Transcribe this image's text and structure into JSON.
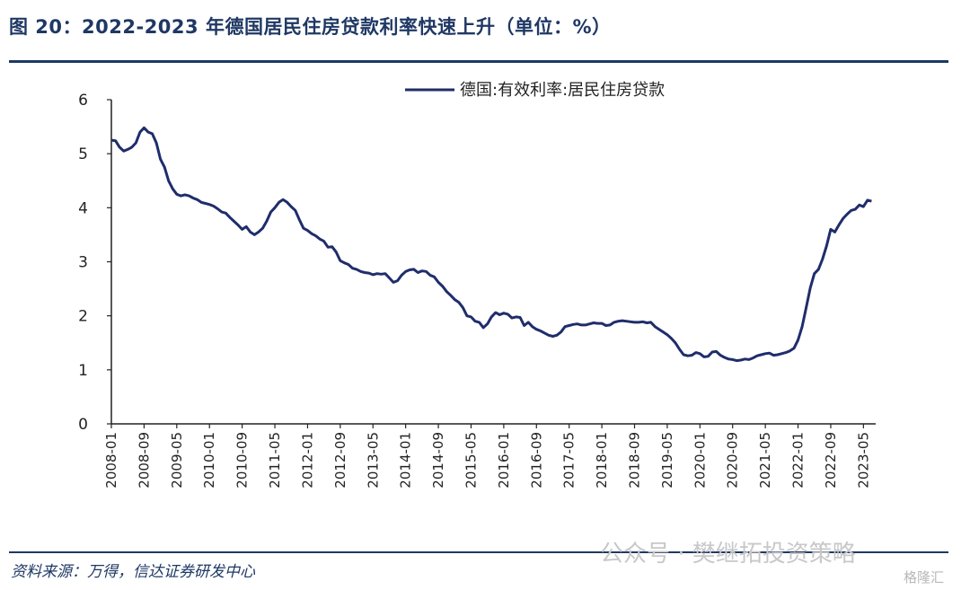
{
  "header": {
    "title": "图 20：2022-2023 年德国居民住房贷款利率快速上升（单位：%）"
  },
  "footer": {
    "source": "资料来源：万得，信达证券研发中心",
    "watermark": "公众号 · 樊继拓投资策略",
    "watermark2": "格隆汇"
  },
  "chart_data": {
    "type": "line",
    "title": "",
    "xlabel": "",
    "ylabel": "",
    "ylim": [
      0,
      6
    ],
    "yticks": [
      "0",
      "1",
      "2",
      "3",
      "4",
      "5",
      "6"
    ],
    "xticks": [
      "2008-01",
      "2008-09",
      "2009-05",
      "2010-01",
      "2010-09",
      "2011-05",
      "2012-01",
      "2012-09",
      "2013-05",
      "2014-01",
      "2014-09",
      "2015-05",
      "2016-01",
      "2016-09",
      "2017-05",
      "2018-01",
      "2018-09",
      "2019-05",
      "2020-01",
      "2020-09",
      "2021-05",
      "2022-01",
      "2022-09",
      "2023-05"
    ],
    "grid": false,
    "legend_position": "top-right",
    "series": [
      {
        "name": "德国:有效利率:居民住房贷款",
        "color": "#1f2d6b",
        "points": [
          [
            "2008-01",
            5.25
          ],
          [
            "2008-02",
            5.24
          ],
          [
            "2008-03",
            5.12
          ],
          [
            "2008-04",
            5.05
          ],
          [
            "2008-05",
            5.08
          ],
          [
            "2008-06",
            5.12
          ],
          [
            "2008-07",
            5.2
          ],
          [
            "2008-08",
            5.4
          ],
          [
            "2008-09",
            5.48
          ],
          [
            "2008-10",
            5.4
          ],
          [
            "2008-11",
            5.37
          ],
          [
            "2008-12",
            5.2
          ],
          [
            "2009-01",
            4.9
          ],
          [
            "2009-02",
            4.75
          ],
          [
            "2009-03",
            4.5
          ],
          [
            "2009-04",
            4.35
          ],
          [
            "2009-05",
            4.25
          ],
          [
            "2009-06",
            4.22
          ],
          [
            "2009-07",
            4.24
          ],
          [
            "2009-08",
            4.22
          ],
          [
            "2009-09",
            4.18
          ],
          [
            "2009-10",
            4.15
          ],
          [
            "2009-11",
            4.1
          ],
          [
            "2009-12",
            4.08
          ],
          [
            "2010-01",
            4.06
          ],
          [
            "2010-02",
            4.03
          ],
          [
            "2010-03",
            3.98
          ],
          [
            "2010-04",
            3.92
          ],
          [
            "2010-05",
            3.9
          ],
          [
            "2010-06",
            3.82
          ],
          [
            "2010-07",
            3.75
          ],
          [
            "2010-08",
            3.68
          ],
          [
            "2010-09",
            3.6
          ],
          [
            "2010-10",
            3.65
          ],
          [
            "2010-11",
            3.55
          ],
          [
            "2010-12",
            3.5
          ],
          [
            "2011-01",
            3.55
          ],
          [
            "2011-02",
            3.62
          ],
          [
            "2011-03",
            3.75
          ],
          [
            "2011-04",
            3.92
          ],
          [
            "2011-05",
            4.0
          ],
          [
            "2011-06",
            4.1
          ],
          [
            "2011-07",
            4.15
          ],
          [
            "2011-08",
            4.1
          ],
          [
            "2011-09",
            4.02
          ],
          [
            "2011-10",
            3.95
          ],
          [
            "2011-11",
            3.78
          ],
          [
            "2011-12",
            3.62
          ],
          [
            "2012-01",
            3.58
          ],
          [
            "2012-02",
            3.52
          ],
          [
            "2012-03",
            3.48
          ],
          [
            "2012-04",
            3.42
          ],
          [
            "2012-05",
            3.38
          ],
          [
            "2012-06",
            3.27
          ],
          [
            "2012-07",
            3.28
          ],
          [
            "2012-08",
            3.18
          ],
          [
            "2012-09",
            3.02
          ],
          [
            "2012-10",
            2.98
          ],
          [
            "2012-11",
            2.95
          ],
          [
            "2012-12",
            2.88
          ],
          [
            "2013-01",
            2.86
          ],
          [
            "2013-02",
            2.82
          ],
          [
            "2013-03",
            2.8
          ],
          [
            "2013-04",
            2.79
          ],
          [
            "2013-05",
            2.76
          ],
          [
            "2013-06",
            2.78
          ],
          [
            "2013-07",
            2.77
          ],
          [
            "2013-08",
            2.78
          ],
          [
            "2013-09",
            2.7
          ],
          [
            "2013-10",
            2.62
          ],
          [
            "2013-11",
            2.65
          ],
          [
            "2013-12",
            2.75
          ],
          [
            "2014-01",
            2.82
          ],
          [
            "2014-02",
            2.85
          ],
          [
            "2014-03",
            2.86
          ],
          [
            "2014-04",
            2.8
          ],
          [
            "2014-05",
            2.83
          ],
          [
            "2014-06",
            2.82
          ],
          [
            "2014-07",
            2.75
          ],
          [
            "2014-08",
            2.72
          ],
          [
            "2014-09",
            2.62
          ],
          [
            "2014-10",
            2.55
          ],
          [
            "2014-11",
            2.45
          ],
          [
            "2014-12",
            2.38
          ],
          [
            "2015-01",
            2.3
          ],
          [
            "2015-02",
            2.25
          ],
          [
            "2015-03",
            2.15
          ],
          [
            "2015-04",
            2.0
          ],
          [
            "2015-05",
            1.98
          ],
          [
            "2015-06",
            1.9
          ],
          [
            "2015-07",
            1.88
          ],
          [
            "2015-08",
            1.78
          ],
          [
            "2015-09",
            1.85
          ],
          [
            "2015-10",
            1.98
          ],
          [
            "2015-11",
            2.06
          ],
          [
            "2015-12",
            2.02
          ],
          [
            "2016-01",
            2.05
          ],
          [
            "2016-02",
            2.03
          ],
          [
            "2016-03",
            1.96
          ],
          [
            "2016-04",
            1.98
          ],
          [
            "2016-05",
            1.97
          ],
          [
            "2016-06",
            1.82
          ],
          [
            "2016-07",
            1.88
          ],
          [
            "2016-08",
            1.8
          ],
          [
            "2016-09",
            1.75
          ],
          [
            "2016-10",
            1.72
          ],
          [
            "2016-11",
            1.68
          ],
          [
            "2016-12",
            1.64
          ],
          [
            "2017-01",
            1.62
          ],
          [
            "2017-02",
            1.64
          ],
          [
            "2017-03",
            1.7
          ],
          [
            "2017-04",
            1.8
          ],
          [
            "2017-05",
            1.82
          ],
          [
            "2017-06",
            1.84
          ],
          [
            "2017-07",
            1.85
          ],
          [
            "2017-08",
            1.83
          ],
          [
            "2017-09",
            1.83
          ],
          [
            "2017-10",
            1.85
          ],
          [
            "2017-11",
            1.87
          ],
          [
            "2017-12",
            1.86
          ],
          [
            "2018-01",
            1.86
          ],
          [
            "2018-02",
            1.82
          ],
          [
            "2018-03",
            1.83
          ],
          [
            "2018-04",
            1.88
          ],
          [
            "2018-05",
            1.9
          ],
          [
            "2018-06",
            1.91
          ],
          [
            "2018-07",
            1.9
          ],
          [
            "2018-08",
            1.89
          ],
          [
            "2018-09",
            1.88
          ],
          [
            "2018-10",
            1.88
          ],
          [
            "2018-11",
            1.89
          ],
          [
            "2018-12",
            1.87
          ],
          [
            "2019-01",
            1.88
          ],
          [
            "2019-02",
            1.8
          ],
          [
            "2019-03",
            1.75
          ],
          [
            "2019-04",
            1.7
          ],
          [
            "2019-05",
            1.65
          ],
          [
            "2019-06",
            1.58
          ],
          [
            "2019-07",
            1.5
          ],
          [
            "2019-08",
            1.38
          ],
          [
            "2019-09",
            1.28
          ],
          [
            "2019-10",
            1.26
          ],
          [
            "2019-11",
            1.27
          ],
          [
            "2019-12",
            1.32
          ],
          [
            "2020-01",
            1.3
          ],
          [
            "2020-02",
            1.24
          ],
          [
            "2020-03",
            1.25
          ],
          [
            "2020-04",
            1.33
          ],
          [
            "2020-05",
            1.34
          ],
          [
            "2020-06",
            1.27
          ],
          [
            "2020-07",
            1.23
          ],
          [
            "2020-08",
            1.2
          ],
          [
            "2020-09",
            1.19
          ],
          [
            "2020-10",
            1.17
          ],
          [
            "2020-11",
            1.18
          ],
          [
            "2020-12",
            1.2
          ],
          [
            "2021-01",
            1.19
          ],
          [
            "2021-02",
            1.22
          ],
          [
            "2021-03",
            1.26
          ],
          [
            "2021-04",
            1.28
          ],
          [
            "2021-05",
            1.3
          ],
          [
            "2021-06",
            1.31
          ],
          [
            "2021-07",
            1.27
          ],
          [
            "2021-08",
            1.28
          ],
          [
            "2021-09",
            1.3
          ],
          [
            "2021-10",
            1.32
          ],
          [
            "2021-11",
            1.35
          ],
          [
            "2021-12",
            1.4
          ],
          [
            "2022-01",
            1.55
          ],
          [
            "2022-02",
            1.8
          ],
          [
            "2022-03",
            2.15
          ],
          [
            "2022-04",
            2.52
          ],
          [
            "2022-05",
            2.78
          ],
          [
            "2022-06",
            2.86
          ],
          [
            "2022-07",
            3.05
          ],
          [
            "2022-08",
            3.3
          ],
          [
            "2022-09",
            3.6
          ],
          [
            "2022-10",
            3.55
          ],
          [
            "2022-11",
            3.68
          ],
          [
            "2022-12",
            3.8
          ],
          [
            "2023-01",
            3.88
          ],
          [
            "2023-02",
            3.95
          ],
          [
            "2023-03",
            3.97
          ],
          [
            "2023-04",
            4.05
          ],
          [
            "2023-05",
            4.02
          ],
          [
            "2023-06",
            4.14
          ],
          [
            "2023-07",
            4.12
          ]
        ]
      }
    ]
  }
}
